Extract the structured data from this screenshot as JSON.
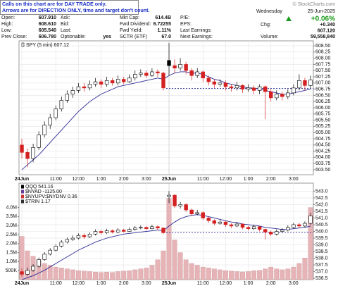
{
  "header": {
    "notice": [
      "Calls on this chart are for DAY TRADE only.",
      "Arrows are for DIRECTION ONLY, time and target don't count."
    ],
    "copyright": "© StockCharts.com",
    "day": "Wednesday",
    "date": "25-Jun-2025",
    "pct_change": "+0.06%",
    "columns": [
      [
        {
          "label": "Open:",
          "value": "607.910"
        },
        {
          "label": "High:",
          "value": "608.610"
        },
        {
          "label": "Low:",
          "value": "605.540"
        },
        {
          "label": "Prev Close:",
          "value": "606.780"
        }
      ],
      [
        {
          "label": "Ask:"
        },
        {
          "label": "Bid:"
        },
        {
          "label": "Last:"
        },
        {
          "label": "Optionable:",
          "value": "yes"
        }
      ],
      [
        {
          "label": "Mkt Cap:",
          "value": "614.4B"
        },
        {
          "label": "Fwd Dividend:",
          "value": "6.72255"
        },
        {
          "label": "Fwd Yield:",
          "value": "1.11%"
        },
        {
          "label": "SCTR (ETF)",
          "value": "67.0"
        }
      ],
      [
        {
          "label": "P/E:"
        },
        {
          "label": "EPS:"
        },
        {
          "label": "Last Earnings:"
        },
        {
          "label": "Next Earnings:"
        }
      ]
    ],
    "right": [
      {
        "label": "Chg:",
        "value": "+0.340"
      },
      {
        "value": "607.120"
      },
      {
        "label": "Volume:",
        "value": "59,558,840"
      }
    ]
  },
  "chart_data": [
    {
      "type": "candlestick",
      "title": "SPY (5 min) 607.12",
      "categories": [
        "24Jun",
        null,
        null,
        null,
        null,
        null,
        "11:00",
        null,
        null,
        null,
        "12:00",
        null,
        null,
        null,
        "1:00",
        null,
        null,
        null,
        "2:00",
        null,
        null,
        null,
        "3:00",
        null,
        null,
        null,
        "25Jun",
        null,
        null,
        null,
        null,
        null,
        "11:00",
        null,
        null,
        null,
        "12:00",
        null,
        null,
        null,
        "1:00",
        null,
        null,
        null,
        "2:00",
        null,
        null,
        null,
        "3:00",
        null,
        null,
        null
      ],
      "ohlc": {
        "open": [
          604.5,
          604.2,
          603.95,
          604.4,
          604.9,
          605.3,
          605.6,
          605.95,
          606.3,
          606.55,
          606.7,
          606.85,
          606.8,
          606.95,
          607.05,
          606.95,
          607.1,
          607.0,
          607.15,
          607.05,
          607.2,
          607.35,
          607.4,
          607.3,
          607.45,
          607.4,
          607.91,
          607.7,
          607.6,
          607.75,
          607.5,
          607.3,
          607.45,
          607.2,
          607.05,
          606.95,
          607.0,
          606.85,
          606.8,
          606.9,
          606.75,
          606.8,
          606.7,
          606.85,
          606.65,
          606.4,
          606.55,
          606.45,
          606.6,
          606.8,
          607.1,
          606.9
        ],
        "high": [
          604.75,
          604.35,
          604.55,
          605.05,
          605.45,
          605.75,
          606.1,
          606.45,
          606.7,
          606.85,
          607.0,
          607.0,
          607.1,
          607.2,
          607.15,
          607.25,
          607.2,
          607.3,
          607.25,
          607.35,
          607.5,
          607.55,
          607.5,
          607.6,
          607.55,
          607.45,
          608.61,
          607.95,
          608.0,
          607.85,
          607.6,
          607.6,
          607.5,
          607.3,
          607.15,
          607.15,
          607.1,
          606.95,
          607.05,
          606.95,
          606.95,
          606.9,
          606.95,
          606.9,
          606.75,
          606.7,
          606.65,
          606.75,
          606.95,
          607.35,
          607.2,
          607.3
        ],
        "low": [
          603.95,
          603.6,
          603.8,
          604.3,
          604.8,
          605.15,
          605.5,
          605.85,
          606.2,
          606.4,
          606.6,
          606.65,
          606.7,
          606.85,
          606.8,
          606.85,
          606.9,
          606.9,
          606.95,
          607.0,
          607.1,
          607.25,
          607.2,
          607.25,
          607.25,
          606.7,
          607.3,
          607.4,
          607.5,
          607.35,
          607.1,
          607.2,
          607.05,
          606.9,
          606.8,
          606.85,
          606.7,
          606.65,
          606.7,
          606.6,
          606.65,
          606.55,
          606.55,
          605.54,
          606.25,
          606.3,
          606.3,
          606.35,
          606.5,
          606.7,
          606.7,
          606.8
        ],
        "close": [
          604.2,
          603.95,
          604.4,
          604.9,
          605.3,
          605.6,
          605.95,
          606.3,
          606.55,
          606.7,
          606.85,
          606.8,
          606.95,
          607.05,
          606.95,
          607.1,
          607.0,
          607.15,
          607.05,
          607.2,
          607.35,
          607.4,
          607.3,
          607.45,
          607.4,
          606.8,
          607.7,
          607.6,
          607.75,
          607.5,
          607.3,
          607.45,
          607.2,
          607.05,
          606.95,
          607.0,
          606.85,
          606.8,
          606.9,
          606.75,
          606.8,
          606.7,
          606.85,
          606.65,
          606.4,
          606.55,
          606.45,
          606.6,
          606.8,
          607.1,
          606.9,
          607.12
        ]
      },
      "color": "#000000",
      "down_color": "#d42020",
      "ma": {
        "color": "#2b2b96",
        "values": [
          603.5,
          603.7,
          603.9,
          604.1,
          604.35,
          604.6,
          604.85,
          605.1,
          605.35,
          605.6,
          605.85,
          606.05,
          606.25,
          606.4,
          606.55,
          606.65,
          606.75,
          606.85,
          606.9,
          606.95,
          607.0,
          607.05,
          607.1,
          607.15,
          607.2,
          607.15,
          607.3,
          607.4,
          607.45,
          607.45,
          607.4,
          607.4,
          607.35,
          607.25,
          607.15,
          607.1,
          607.0,
          606.95,
          606.9,
          606.85,
          606.8,
          606.8,
          606.75,
          606.7,
          606.65,
          606.6,
          606.55,
          606.55,
          606.6,
          606.65,
          606.7,
          606.75
        ]
      },
      "prev_close_line": 606.78,
      "ylim": [
        603.3,
        608.7
      ],
      "yticks": [
        {
          "value": 608.5,
          "label": "608.50"
        },
        608.25,
        {
          "value": 608,
          "label": "608.00"
        },
        607.75,
        {
          "value": 607.5,
          "label": "607.50"
        },
        607.25,
        {
          "value": 607,
          "label": "607.00"
        },
        606.75,
        {
          "value": 606.5,
          "label": "606.50"
        },
        606.25,
        {
          "value": 606,
          "label": "606.00"
        },
        605.75,
        {
          "value": 605.5,
          "label": "605.50"
        },
        605.25,
        {
          "value": 605,
          "label": "605.00"
        },
        604.75,
        {
          "value": 604.5,
          "label": "604.50"
        },
        604.25,
        {
          "value": 604,
          "label": "604.00"
        },
        603.75,
        {
          "value": 603.5,
          "label": "603.50"
        }
      ],
      "grid": true
    },
    {
      "type": "candlestick",
      "legend": [
        "QQQ 541.16",
        "$NYAD -1125.00",
        "$NYUPV:$NYDNV 0.36",
        "$TRIN 1.17"
      ],
      "categories": [
        "24Jun",
        null,
        null,
        null,
        null,
        null,
        "11:00",
        null,
        null,
        null,
        "12:00",
        null,
        null,
        null,
        "1:00",
        null,
        null,
        null,
        "2:00",
        null,
        null,
        null,
        "3:00",
        null,
        null,
        null,
        "25Jun",
        null,
        null,
        null,
        null,
        null,
        "11:00",
        null,
        null,
        null,
        "12:00",
        null,
        null,
        null,
        "1:00",
        null,
        null,
        null,
        "2:00",
        null,
        null,
        null,
        "3:00",
        null,
        null,
        null
      ],
      "ohlc": {
        "open": [
          537.0,
          536.8,
          537.1,
          537.4,
          537.9,
          538.3,
          538.6,
          538.9,
          539.2,
          539.4,
          539.5,
          539.7,
          539.6,
          539.8,
          540.0,
          539.9,
          540.05,
          539.95,
          540.1,
          540.0,
          540.15,
          540.25,
          540.3,
          540.2,
          540.35,
          540.25,
          542.6,
          542.7,
          541.9,
          542.0,
          541.6,
          541.3,
          541.4,
          541.0,
          540.8,
          540.6,
          540.7,
          540.5,
          540.4,
          540.55,
          540.3,
          540.2,
          540.35,
          540.15,
          539.95,
          539.8,
          540.0,
          540.1,
          540.3,
          540.5,
          540.4,
          540.6
        ],
        "high": [
          537.25,
          537.3,
          537.55,
          538.05,
          538.45,
          538.75,
          539.05,
          539.35,
          539.55,
          539.7,
          539.85,
          539.85,
          539.95,
          540.15,
          540.1,
          540.2,
          540.15,
          540.25,
          540.2,
          540.3,
          540.4,
          540.45,
          540.4,
          540.5,
          540.45,
          540.3,
          543.0,
          542.8,
          542.2,
          542.1,
          541.7,
          541.6,
          541.5,
          541.1,
          540.9,
          540.85,
          540.8,
          540.6,
          540.7,
          540.6,
          540.4,
          540.5,
          540.4,
          540.2,
          540.05,
          540.15,
          540.25,
          540.45,
          540.65,
          540.65,
          540.75,
          541.4
        ],
        "low": [
          536.6,
          536.7,
          537.0,
          537.3,
          537.8,
          538.2,
          538.5,
          538.8,
          539.1,
          539.3,
          539.4,
          539.45,
          539.5,
          539.7,
          539.75,
          539.8,
          539.85,
          539.85,
          539.9,
          539.95,
          540.05,
          540.15,
          540.1,
          540.15,
          540.1,
          539.8,
          542.1,
          541.75,
          541.7,
          541.45,
          541.15,
          541.2,
          540.85,
          540.65,
          540.45,
          540.5,
          540.35,
          540.25,
          540.3,
          540.15,
          540.05,
          540.1,
          540.0,
          539.4,
          539.65,
          539.7,
          539.9,
          540.0,
          540.2,
          540.25,
          540.3,
          540.5
        ],
        "close": [
          536.8,
          537.1,
          537.4,
          537.9,
          538.3,
          538.6,
          538.9,
          539.2,
          539.4,
          539.5,
          539.7,
          539.6,
          539.8,
          540.0,
          539.9,
          540.05,
          539.95,
          540.1,
          540.0,
          540.15,
          540.25,
          540.3,
          540.2,
          540.35,
          540.25,
          539.9,
          542.7,
          541.9,
          542.0,
          541.6,
          541.3,
          541.4,
          541.0,
          540.8,
          540.6,
          540.7,
          540.5,
          540.4,
          540.55,
          540.3,
          540.2,
          540.35,
          540.15,
          539.95,
          539.8,
          540.0,
          540.1,
          540.3,
          540.5,
          540.4,
          540.6,
          541.16
        ]
      },
      "color": "#000000",
      "down_color": "#d42020",
      "ma": {
        "color": "#2b2b96",
        "values": [
          536.4,
          536.55,
          536.7,
          536.9,
          537.1,
          537.35,
          537.6,
          537.85,
          538.1,
          538.35,
          538.6,
          538.8,
          539.0,
          539.2,
          539.35,
          539.5,
          539.6,
          539.7,
          539.8,
          539.85,
          539.9,
          539.95,
          540.0,
          540.05,
          540.1,
          540.05,
          540.4,
          540.7,
          540.95,
          541.1,
          541.2,
          541.25,
          541.2,
          541.1,
          541.0,
          540.9,
          540.8,
          540.7,
          540.65,
          540.55,
          540.5,
          540.45,
          540.4,
          540.3,
          540.25,
          540.2,
          540.15,
          540.15,
          540.2,
          540.25,
          540.3,
          540.4
        ]
      },
      "prev_close_line": 539.9,
      "volume": {
        "axis": "y2",
        "color": "#e6b3b7",
        "values": [
          2400000,
          1600000,
          1300000,
          1100000,
          900000,
          800000,
          700000,
          650000,
          600000,
          550000,
          500000,
          480000,
          450000,
          420000,
          400000,
          420000,
          400000,
          450000,
          480000,
          500000,
          550000,
          600000,
          650000,
          800000,
          1100000,
          1600000,
          4500000,
          2200000,
          1500000,
          1100000,
          900000,
          800000,
          700000,
          650000,
          600000,
          550000,
          500000,
          480000,
          450000,
          430000,
          450000,
          500000,
          520000,
          600000,
          700000,
          600000,
          550000,
          600000,
          700000,
          900000,
          1200000,
          4000000
        ]
      },
      "ylim": [
        536.4,
        543.6
      ],
      "yticks": [
        {
          "value": 543,
          "label": "543.0"
        },
        542.5,
        {
          "value": 542,
          "label": "542.0"
        },
        541.5,
        {
          "value": 541,
          "label": "541.0"
        },
        540.5,
        {
          "value": 540,
          "label": "540.0"
        },
        539.5,
        {
          "value": 539,
          "label": "539.0"
        },
        538.5,
        {
          "value": 538,
          "label": "538.0"
        },
        537.5,
        {
          "value": 537,
          "label": "537.0"
        },
        536.5
      ],
      "y2lim": [
        0,
        5350000
      ],
      "y2ticks": [
        {
          "value": 4000000,
          "label": "4.0M"
        },
        {
          "value": 3500000,
          "label": "3.5M"
        },
        {
          "value": 3000000,
          "label": "3.0M"
        },
        {
          "value": 2500000,
          "label": "2.5M"
        },
        {
          "value": 2000000,
          "label": "2.0M"
        },
        {
          "value": 1500000,
          "label": "1.5M"
        },
        {
          "value": 1000000,
          "label": "1.0M"
        },
        {
          "value": 500000,
          "label": "500K"
        }
      ],
      "grid": true
    }
  ]
}
